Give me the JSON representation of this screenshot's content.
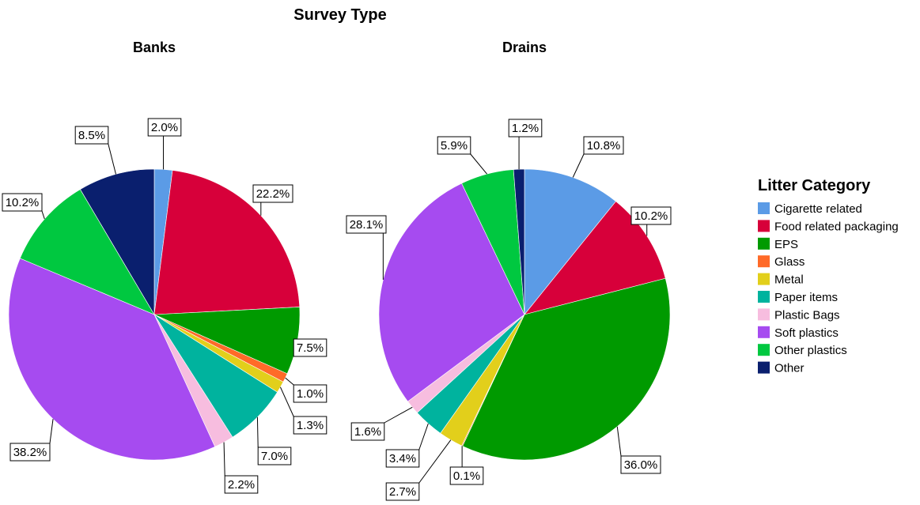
{
  "figure_title": "Survey Type",
  "legend": {
    "title": "Litter Category",
    "items": [
      {
        "label": "Cigarette related",
        "color": "#5b9be6"
      },
      {
        "label": "Food related packaging",
        "color": "#d7003a"
      },
      {
        "label": "EPS",
        "color": "#009a00"
      },
      {
        "label": "Glass",
        "color": "#ff6a28"
      },
      {
        "label": "Metal",
        "color": "#e2cf1b"
      },
      {
        "label": "Paper items",
        "color": "#00b39e"
      },
      {
        "label": "Plastic Bags",
        "color": "#f7bddf"
      },
      {
        "label": "Soft plastics",
        "color": "#a64bf0"
      },
      {
        "label": "Other plastics",
        "color": "#00c840"
      },
      {
        "label": "Other",
        "color": "#0a1f6e"
      }
    ]
  },
  "chart_data": [
    {
      "type": "pie",
      "title": "Banks",
      "categories": [
        "Cigarette related",
        "Food related packaging",
        "EPS",
        "Glass",
        "Metal",
        "Paper items",
        "Plastic Bags",
        "Soft plastics",
        "Other plastics",
        "Other"
      ],
      "values": [
        2.0,
        22.2,
        7.5,
        1.0,
        1.3,
        7.0,
        2.2,
        38.2,
        10.2,
        8.5
      ],
      "labels": [
        "2.0%",
        "22.2%",
        "7.5%",
        "1.0%",
        "1.3%",
        "7.0%",
        "2.2%",
        "38.2%",
        "10.2%",
        "8.5%"
      ],
      "start": "12 o'clock",
      "direction": "clockwise"
    },
    {
      "type": "pie",
      "title": "Drains",
      "categories": [
        "Cigarette related",
        "Food related packaging",
        "EPS",
        "Glass",
        "Metal",
        "Paper items",
        "Plastic Bags",
        "Soft plastics",
        "Other plastics",
        "Other"
      ],
      "values": [
        10.8,
        10.2,
        36.0,
        0.1,
        2.7,
        3.4,
        1.6,
        28.1,
        5.9,
        1.2
      ],
      "labels": [
        "10.8%",
        "10.2%",
        "36.0%",
        "0.1%",
        "2.7%",
        "3.4%",
        "1.6%",
        "28.1%",
        "5.9%",
        "1.2%"
      ],
      "start": "12 o'clock",
      "direction": "clockwise"
    }
  ]
}
